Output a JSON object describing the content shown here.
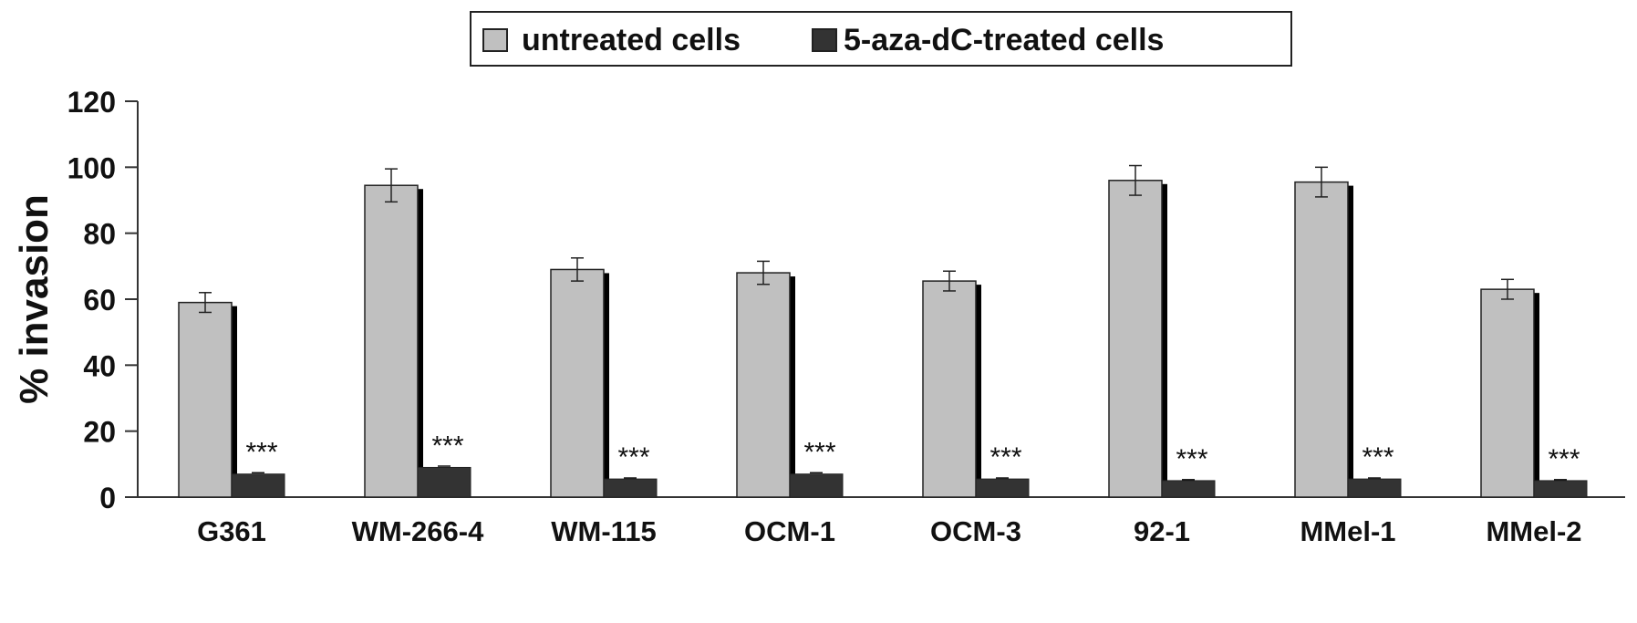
{
  "chart_data": {
    "type": "bar",
    "title": "",
    "xlabel": "",
    "ylabel": "% invasion",
    "ylim": [
      0,
      120
    ],
    "yticks": [
      0,
      20,
      40,
      60,
      80,
      100,
      120
    ],
    "ytick_labels": [
      "0",
      "20",
      "40",
      "60",
      "80",
      "100",
      "120"
    ],
    "categories": [
      "G361",
      "WM-266-4",
      "WM-115",
      "OCM-1",
      "OCM-3",
      "92-1",
      "MMel-1",
      "MMel-2"
    ],
    "series": [
      {
        "name": "untreated cells",
        "color": "#c0c0c0",
        "values": [
          59,
          94.5,
          69,
          68,
          65.5,
          96,
          95.5,
          63
        ],
        "errors": [
          3,
          5,
          3.5,
          3.5,
          3,
          4.5,
          4.5,
          3
        ]
      },
      {
        "name": "5-aza-dC-treated cells",
        "color": "#333333",
        "values": [
          7,
          9,
          5.5,
          7,
          5.5,
          5,
          5.5,
          5
        ],
        "errors": [
          0.4,
          0.4,
          0.3,
          0.4,
          0.3,
          0.3,
          0.3,
          0.3
        ]
      }
    ],
    "annotations": [
      "***",
      "***",
      "***",
      "***",
      "***",
      "***",
      "***",
      "***"
    ],
    "legend_position": "top-center",
    "grid": false
  }
}
